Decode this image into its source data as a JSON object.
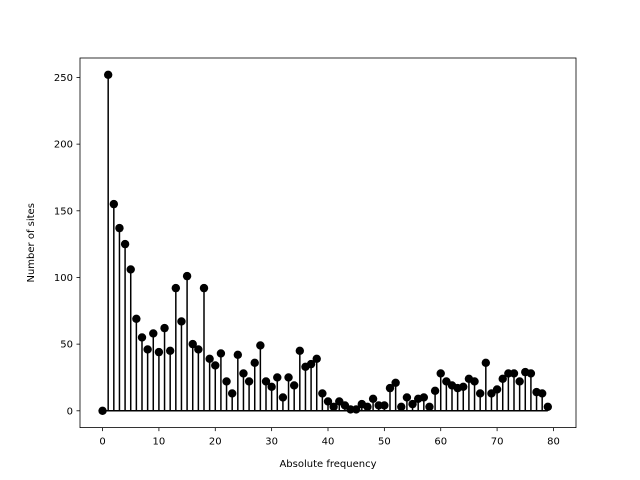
{
  "chart_data": {
    "type": "stem",
    "xlabel": "Absolute frequency",
    "ylabel": "Number of sites",
    "xlim": [
      -4,
      84
    ],
    "ylim": [
      -12.6,
      264.6
    ],
    "xticks": [
      0,
      10,
      20,
      30,
      40,
      50,
      60,
      70,
      80
    ],
    "yticks": [
      0,
      50,
      100,
      150,
      200,
      250
    ],
    "marker_color": "#000000",
    "stem_color": "#000000",
    "baseline_color": "#000000",
    "x": [
      0,
      1,
      2,
      3,
      4,
      5,
      6,
      7,
      8,
      9,
      10,
      11,
      12,
      13,
      14,
      15,
      16,
      17,
      18,
      19,
      20,
      21,
      22,
      23,
      24,
      25,
      26,
      27,
      28,
      29,
      30,
      31,
      32,
      33,
      34,
      35,
      36,
      37,
      38,
      39,
      40,
      41,
      42,
      43,
      44,
      45,
      46,
      47,
      48,
      49,
      50,
      51,
      52,
      53,
      54,
      55,
      56,
      57,
      58,
      59,
      60,
      61,
      62,
      63,
      64,
      65,
      66,
      67,
      68,
      69,
      70,
      71,
      72,
      73,
      74,
      75,
      76,
      77,
      78,
      79
    ],
    "values": [
      0,
      252,
      155,
      137,
      125,
      106,
      69,
      55,
      46,
      58,
      44,
      62,
      45,
      92,
      67,
      101,
      50,
      46,
      92,
      39,
      34,
      43,
      22,
      13,
      42,
      28,
      22,
      36,
      49,
      22,
      18,
      25,
      10,
      25,
      19,
      45,
      33,
      35,
      39,
      13,
      7,
      3,
      7,
      4,
      1,
      1,
      5,
      3,
      9,
      4,
      4,
      17,
      21,
      3,
      10,
      5,
      9,
      10,
      3,
      15,
      28,
      22,
      19,
      17,
      18,
      24,
      22,
      13,
      36,
      13,
      16,
      24,
      28,
      28,
      22,
      29,
      28,
      14,
      13,
      3
    ]
  }
}
